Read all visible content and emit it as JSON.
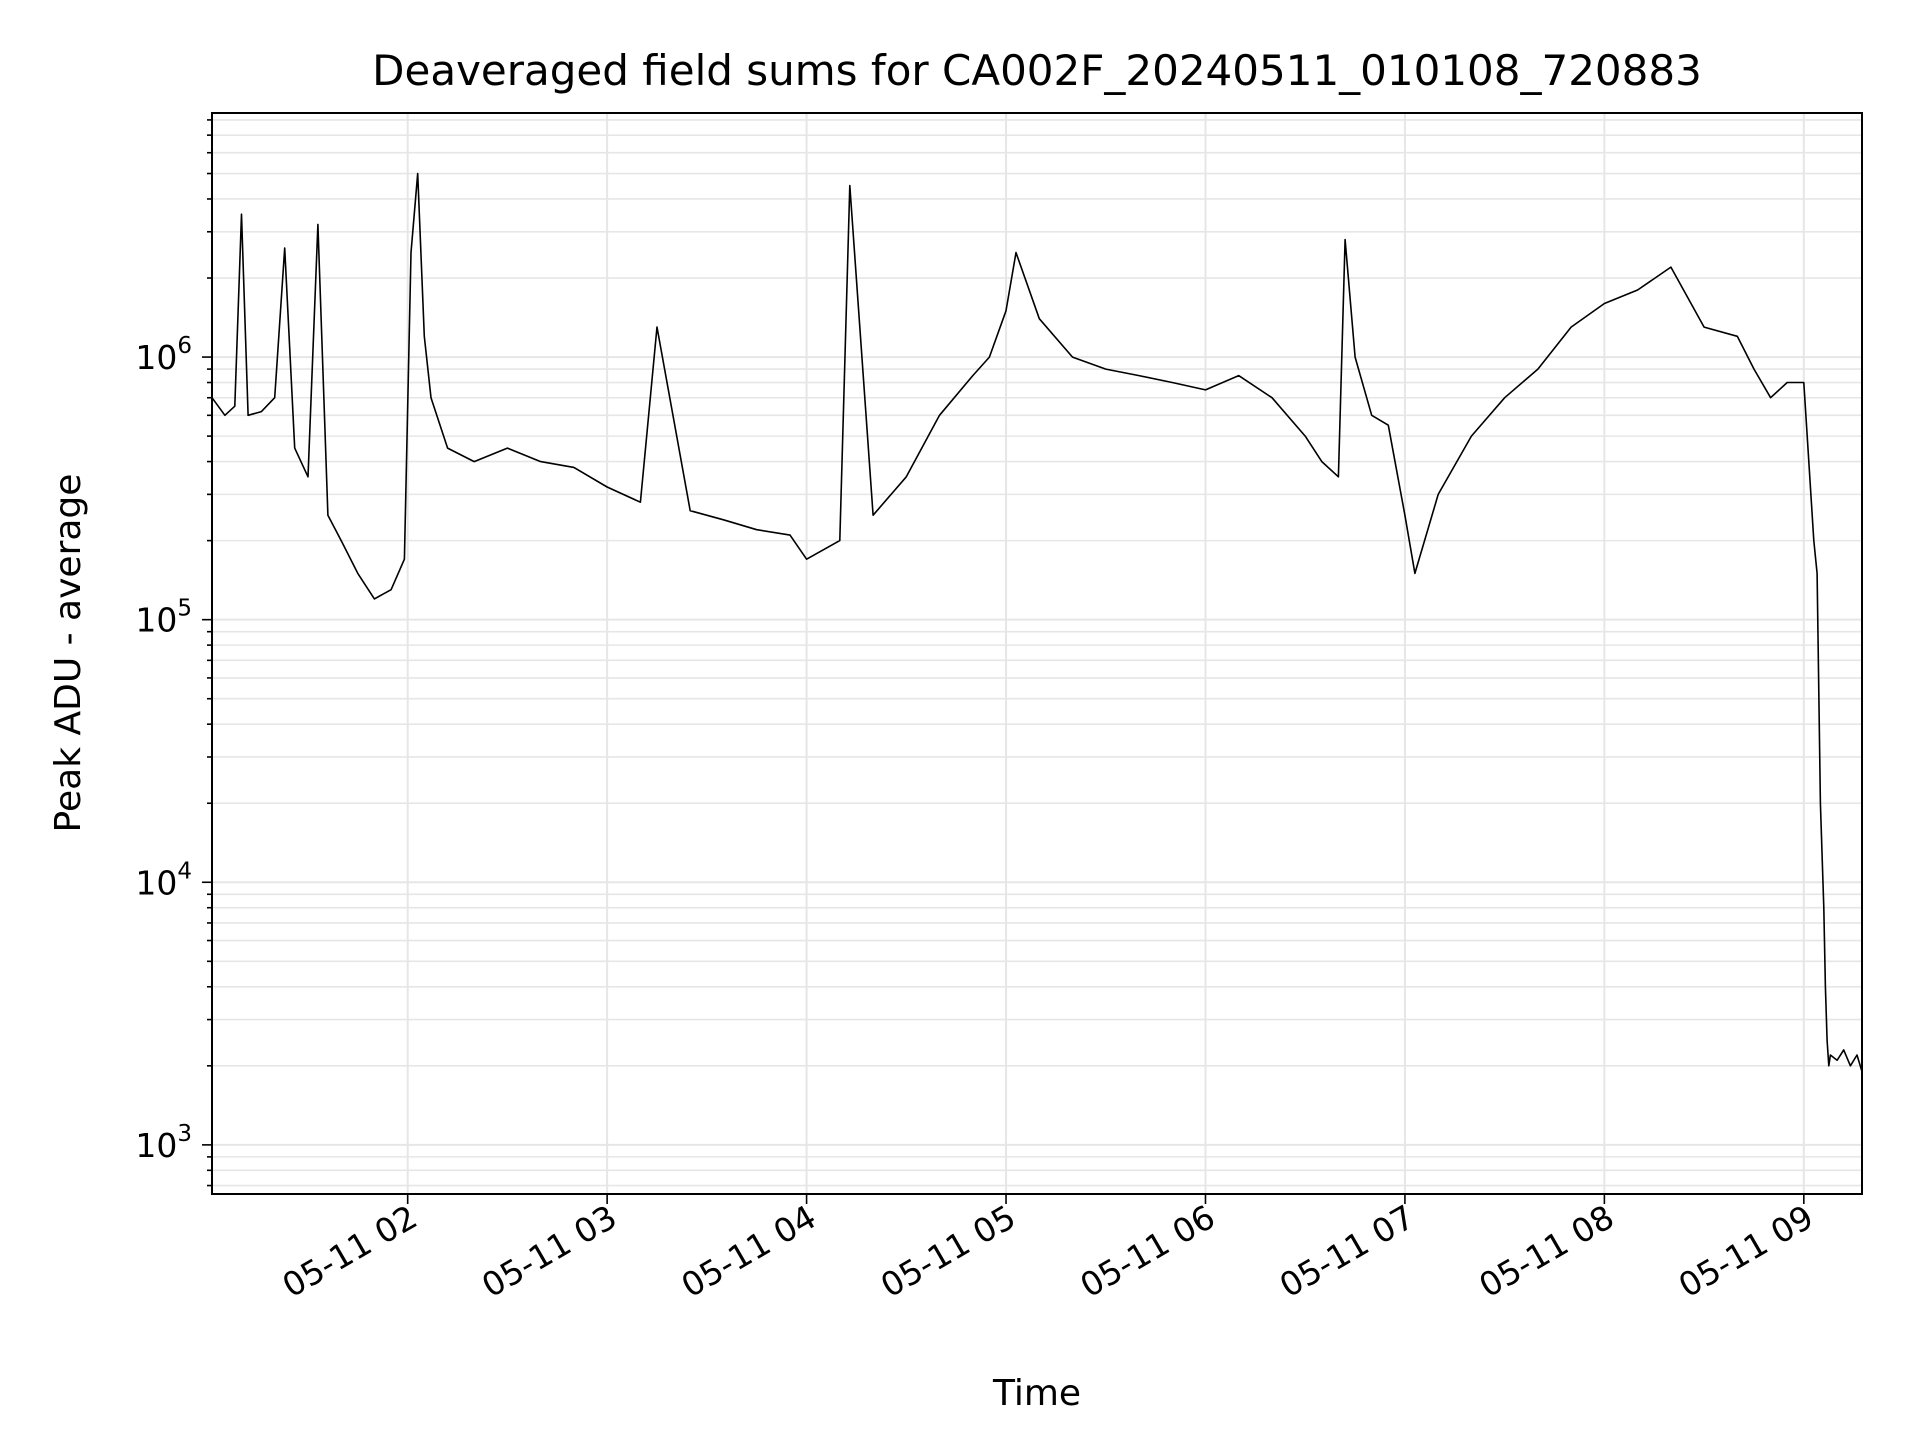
{
  "chart_data": {
    "type": "line",
    "title": "Deaveraged field sums for CA002F_20240511_010108_720883",
    "xlabel": "Time",
    "ylabel": "Peak ADU - average",
    "yscale": "log",
    "ylim": [
      650,
      8500000
    ],
    "xlim": [
      "2024-05-11T01:01:08",
      "2024-05-11T09:17:30"
    ],
    "grid": true,
    "x_tick_labels": [
      "05-11 02",
      "05-11 03",
      "05-11 04",
      "05-11 05",
      "05-11 06",
      "05-11 07",
      "05-11 08",
      "05-11 09"
    ],
    "x_tick_times": [
      "2024-05-11T02:00:00",
      "2024-05-11T03:00:00",
      "2024-05-11T04:00:00",
      "2024-05-11T05:00:00",
      "2024-05-11T06:00:00",
      "2024-05-11T07:00:00",
      "2024-05-11T08:00:00",
      "2024-05-11T09:00:00"
    ],
    "y_tick_labels": [
      {
        "base": "10",
        "exp": "3",
        "value": 1000
      },
      {
        "base": "10",
        "exp": "4",
        "value": 10000
      },
      {
        "base": "10",
        "exp": "5",
        "value": 100000
      },
      {
        "base": "10",
        "exp": "6",
        "value": 1000000
      }
    ],
    "line_color": "#000000",
    "grid_color": "#e6e6e6",
    "series": [
      {
        "x": [
          "2024-05-11T01:01:08",
          "2024-05-11T01:05:00",
          "2024-05-11T01:08:00",
          "2024-05-11T01:10:00",
          "2024-05-11T01:12:00",
          "2024-05-11T01:16:00",
          "2024-05-11T01:20:00",
          "2024-05-11T01:23:00",
          "2024-05-11T01:26:00",
          "2024-05-11T01:30:00",
          "2024-05-11T01:33:00",
          "2024-05-11T01:36:00",
          "2024-05-11T01:40:00",
          "2024-05-11T01:45:00",
          "2024-05-11T01:50:00",
          "2024-05-11T01:55:00",
          "2024-05-11T01:59:00",
          "2024-05-11T02:01:00",
          "2024-05-11T02:03:00",
          "2024-05-11T02:05:00",
          "2024-05-11T02:07:00",
          "2024-05-11T02:12:00",
          "2024-05-11T02:20:00",
          "2024-05-11T02:30:00",
          "2024-05-11T02:40:00",
          "2024-05-11T02:50:00",
          "2024-05-11T03:00:00",
          "2024-05-11T03:10:00",
          "2024-05-11T03:15:00",
          "2024-05-11T03:25:00",
          "2024-05-11T03:35:00",
          "2024-05-11T03:45:00",
          "2024-05-11T03:55:00",
          "2024-05-11T04:00:00",
          "2024-05-11T04:10:00",
          "2024-05-11T04:13:00",
          "2024-05-11T04:20:00",
          "2024-05-11T04:30:00",
          "2024-05-11T04:40:00",
          "2024-05-11T04:50:00",
          "2024-05-11T04:55:00",
          "2024-05-11T05:00:00",
          "2024-05-11T05:03:00",
          "2024-05-11T05:10:00",
          "2024-05-11T05:20:00",
          "2024-05-11T05:30:00",
          "2024-05-11T05:40:00",
          "2024-05-11T05:50:00",
          "2024-05-11T06:00:00",
          "2024-05-11T06:10:00",
          "2024-05-11T06:20:00",
          "2024-05-11T06:30:00",
          "2024-05-11T06:35:00",
          "2024-05-11T06:40:00",
          "2024-05-11T06:42:00",
          "2024-05-11T06:45:00",
          "2024-05-11T06:50:00",
          "2024-05-11T06:55:00",
          "2024-05-11T07:00:00",
          "2024-05-11T07:03:00",
          "2024-05-11T07:10:00",
          "2024-05-11T07:20:00",
          "2024-05-11T07:30:00",
          "2024-05-11T07:40:00",
          "2024-05-11T07:50:00",
          "2024-05-11T08:00:00",
          "2024-05-11T08:10:00",
          "2024-05-11T08:20:00",
          "2024-05-11T08:30:00",
          "2024-05-11T08:40:00",
          "2024-05-11T08:45:00",
          "2024-05-11T08:50:00",
          "2024-05-11T08:55:00",
          "2024-05-11T09:00:00",
          "2024-05-11T09:01:00",
          "2024-05-11T09:03:00",
          "2024-05-11T09:04:00",
          "2024-05-11T09:05:00",
          "2024-05-11T09:06:00",
          "2024-05-11T09:06:30",
          "2024-05-11T09:07:00",
          "2024-05-11T09:07:30",
          "2024-05-11T09:08:00",
          "2024-05-11T09:10:00",
          "2024-05-11T09:12:00",
          "2024-05-11T09:14:00",
          "2024-05-11T09:16:00",
          "2024-05-11T09:17:30"
        ],
        "y": [
          700000,
          600000,
          650000,
          3500000,
          600000,
          620000,
          700000,
          2600000,
          450000,
          350000,
          3200000,
          250000,
          200000,
          150000,
          120000,
          130000,
          170000,
          2500000,
          5000000,
          1200000,
          700000,
          450000,
          400000,
          450000,
          400000,
          380000,
          320000,
          280000,
          1300000,
          260000,
          240000,
          220000,
          210000,
          170000,
          200000,
          4500000,
          250000,
          350000,
          600000,
          850000,
          1000000,
          1500000,
          2500000,
          1400000,
          1000000,
          900000,
          850000,
          800000,
          750000,
          850000,
          700000,
          500000,
          400000,
          350000,
          2800000,
          1000000,
          600000,
          550000,
          250000,
          150000,
          300000,
          500000,
          700000,
          900000,
          1300000,
          1600000,
          1800000,
          2200000,
          1300000,
          1200000,
          900000,
          700000,
          800000,
          800000,
          500000,
          200000,
          150000,
          20000,
          8000,
          4000,
          2500,
          2000,
          2200,
          2100,
          2300,
          2000,
          2200,
          1900
        ]
      }
    ]
  }
}
